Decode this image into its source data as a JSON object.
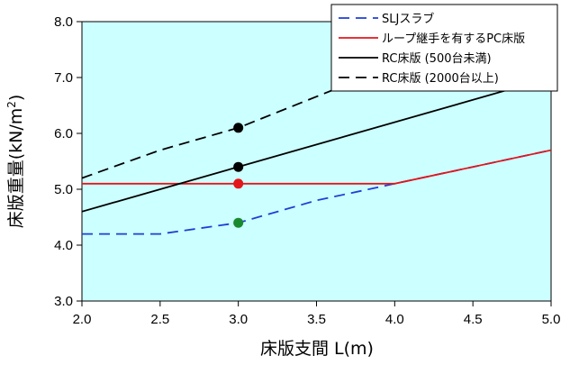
{
  "chart_data": {
    "type": "line",
    "xlabel": "床版支間 L(m)",
    "ylabel_main": "床版重量(kN/m",
    "ylabel_sup": "2",
    "ylabel_end": ")",
    "xlim": [
      2.0,
      5.0
    ],
    "ylim": [
      3.0,
      8.0
    ],
    "x_ticks": [
      "2.0",
      "2.5",
      "3.0",
      "3.5",
      "4.0",
      "4.5",
      "5.0"
    ],
    "y_ticks": [
      "3.0",
      "4.0",
      "5.0",
      "6.0",
      "7.0",
      "8.0"
    ],
    "grid": false,
    "legend_position": "top-right",
    "plot_background": "#ccffff",
    "series": [
      {
        "name": "SLJスラブ",
        "color": "#1f3fd6",
        "dash": "dashed",
        "points": [
          [
            2.0,
            4.2
          ],
          [
            2.5,
            4.2
          ],
          [
            3.0,
            4.4
          ],
          [
            3.5,
            4.8
          ],
          [
            4.0,
            5.1
          ],
          [
            5.0,
            5.7
          ]
        ],
        "marker": {
          "x": 3.0,
          "y": 4.4,
          "color": "#1a8a2e"
        }
      },
      {
        "name": "ループ継手を有するPC床版",
        "color": "#e3161b",
        "dash": "solid",
        "points": [
          [
            2.0,
            5.1
          ],
          [
            4.0,
            5.1
          ],
          [
            5.0,
            5.7
          ]
        ],
        "marker": {
          "x": 3.0,
          "y": 5.1,
          "color": "#e3161b"
        }
      },
      {
        "name": "RC床版 (500台未満)",
        "color": "#000000",
        "dash": "solid",
        "points": [
          [
            2.0,
            4.6
          ],
          [
            5.0,
            7.0
          ]
        ],
        "marker": {
          "x": 3.0,
          "y": 5.4,
          "color": "#000000"
        }
      },
      {
        "name": "RC床版 (2000台以上)",
        "color": "#000000",
        "dash": "dashed",
        "points": [
          [
            2.0,
            5.2
          ],
          [
            2.5,
            5.7
          ],
          [
            3.0,
            6.1
          ],
          [
            4.7,
            8.0
          ]
        ],
        "marker": {
          "x": 3.0,
          "y": 6.1,
          "color": "#000000"
        }
      }
    ]
  }
}
